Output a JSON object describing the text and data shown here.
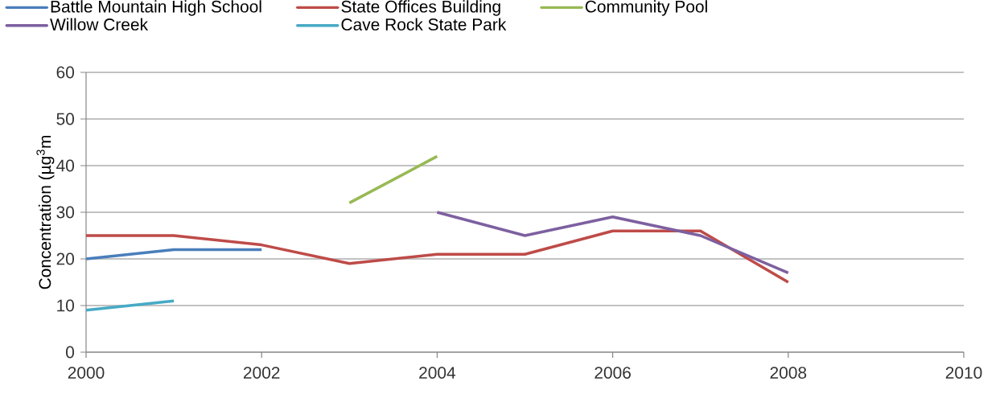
{
  "chart_data": {
    "type": "line",
    "ylabel": "Concentration (µg$^{3}$m",
    "xlim": [
      2000,
      2010
    ],
    "ylim": [
      0,
      60
    ],
    "xticks": [
      2000,
      2002,
      2004,
      2006,
      2008,
      2010
    ],
    "yticks": [
      0,
      10,
      20,
      30,
      40,
      50,
      60
    ],
    "grid": "y",
    "legend": "top",
    "marker": "none",
    "line_style": "solid",
    "series": [
      {
        "name": "Battle Mountain High School",
        "color": "#4a7ebb",
        "x": [
          2000,
          2001,
          2002
        ],
        "values": [
          20,
          22,
          22
        ]
      },
      {
        "name": "State Offices Building",
        "color": "#be4b48",
        "x": [
          2000,
          2001,
          2002,
          2003,
          2004,
          2005,
          2006,
          2007,
          2008
        ],
        "values": [
          25,
          25,
          23,
          19,
          21,
          21,
          26,
          26,
          15
        ]
      },
      {
        "name": "Community Pool",
        "color": "#98b954",
        "x": [
          2003,
          2004
        ],
        "values": [
          32,
          42
        ]
      },
      {
        "name": "Willow Creek",
        "color": "#7d60a0",
        "x": [
          2004,
          2005,
          2006,
          2007,
          2008
        ],
        "values": [
          30,
          25,
          29,
          25,
          17
        ]
      },
      {
        "name": "Cave Rock State Park",
        "color": "#46aac5",
        "x": [
          2000,
          2001
        ],
        "values": [
          9,
          11
        ]
      }
    ]
  }
}
